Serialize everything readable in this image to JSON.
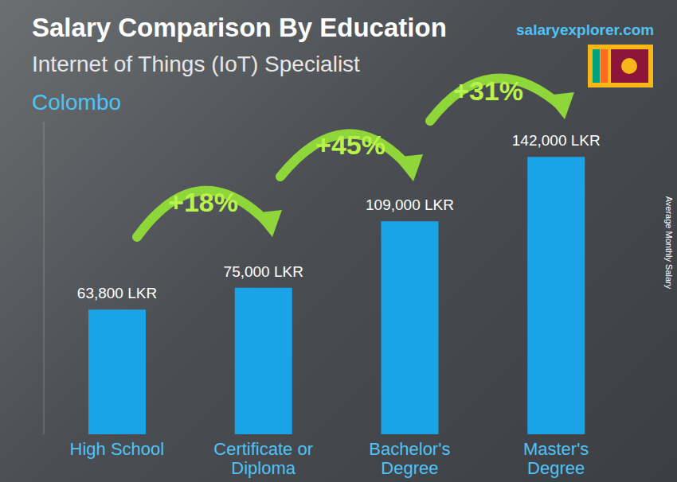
{
  "chart_data": {
    "type": "bar",
    "title": "Salary Comparison By Education",
    "subtitle": "Internet of Things (IoT) Specialist",
    "location": "Colombo",
    "source": "salaryexplorer.com",
    "y_label": "Average Monthly Salary",
    "categories": [
      "High School",
      "Certificate or Diploma",
      "Bachelor's Degree",
      "Master's Degree"
    ],
    "values": [
      63800,
      75000,
      109000,
      142000
    ],
    "value_labels": [
      "63,800 LKR",
      "75,000 LKR",
      "109,000 LKR",
      "142,000 LKR"
    ],
    "data_labels": true,
    "annotations": [
      "+18%",
      "+45%",
      "+31%"
    ],
    "color": "#1aa3e6",
    "ylim": [
      0,
      160000
    ],
    "tick_labels": "x",
    "grid": false
  }
}
